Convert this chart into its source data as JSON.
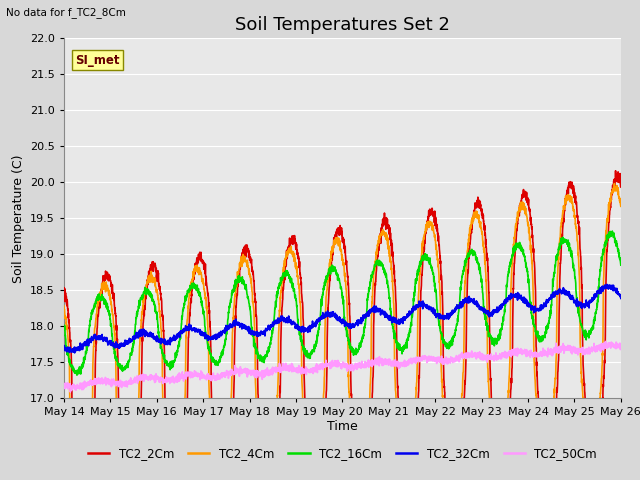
{
  "title": "Soil Temperatures Set 2",
  "xlabel": "Time",
  "ylabel": "Soil Temperature (C)",
  "note": "No data for f_TC2_8Cm",
  "legend_label": "SI_met",
  "ylim": [
    17.0,
    22.0
  ],
  "yticks": [
    17.0,
    17.5,
    18.0,
    18.5,
    19.0,
    19.5,
    20.0,
    20.5,
    21.0,
    21.5,
    22.0
  ],
  "series": {
    "TC2_2Cm": {
      "color": "#dd0000",
      "lw": 1.2
    },
    "TC2_4Cm": {
      "color": "#ff9900",
      "lw": 1.2
    },
    "TC2_16Cm": {
      "color": "#00dd00",
      "lw": 1.2
    },
    "TC2_32Cm": {
      "color": "#0000ee",
      "lw": 1.2
    },
    "TC2_50Cm": {
      "color": "#ff99ff",
      "lw": 1.2
    }
  },
  "bg_color": "#d8d8d8",
  "plot_bg": "#e8e8e8",
  "grid_color": "#ffffff",
  "title_fontsize": 13,
  "axis_fontsize": 9,
  "tick_fontsize": 8,
  "xtick_labels": [
    "May 14",
    "May 15",
    "May 16",
    "May 17",
    "May 18",
    "May 19",
    "May 20",
    "May 21",
    "May 22",
    "May 23",
    "May 24",
    "May 25",
    "May 26"
  ]
}
